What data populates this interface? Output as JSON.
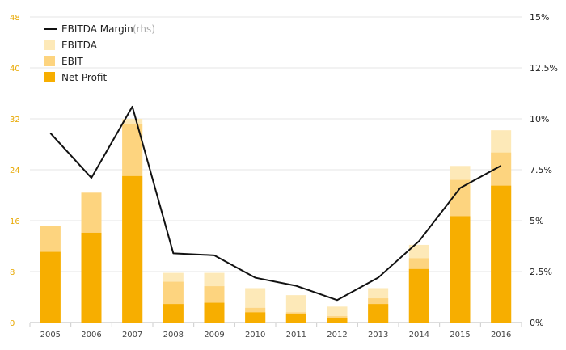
{
  "chart_data": {
    "type": "bar",
    "categories": [
      "2005",
      "2006",
      "2007",
      "2008",
      "2009",
      "2010",
      "2011",
      "2012",
      "2013",
      "2014",
      "2015",
      "2016"
    ],
    "series": [
      {
        "name": "EBITDA",
        "kind": "bar",
        "color": "#fde9b8",
        "values": [
          15.2,
          20.4,
          32.0,
          7.8,
          7.8,
          5.4,
          4.3,
          2.5,
          5.4,
          12.2,
          24.6,
          30.2
        ]
      },
      {
        "name": "EBIT",
        "kind": "bar",
        "color": "#fdd47f",
        "values": [
          15.2,
          20.4,
          31.2,
          6.4,
          5.7,
          2.3,
          1.6,
          1.0,
          3.8,
          10.1,
          22.4,
          26.7
        ]
      },
      {
        "name": "Net Profit",
        "kind": "bar",
        "color": "#f7ae00",
        "values": [
          11.1,
          14.1,
          23.0,
          2.9,
          3.1,
          1.6,
          1.3,
          0.7,
          2.9,
          8.4,
          16.7,
          21.5
        ]
      },
      {
        "name": "EBITDA Margin",
        "kind": "line",
        "axis": "right",
        "color": "#111111",
        "values": [
          9.3,
          7.1,
          10.6,
          3.4,
          3.3,
          2.2,
          1.8,
          1.1,
          2.2,
          4.0,
          6.6,
          7.7
        ]
      }
    ],
    "left_ticks": [
      "0",
      "8",
      "16",
      "24",
      "32",
      "40",
      "48"
    ],
    "right_ticks": [
      "0%",
      "2.5%",
      "5%",
      "7.5%",
      "10%",
      "12.5%",
      "15%"
    ],
    "ylim_left": [
      0,
      48
    ],
    "ylim_right": [
      0,
      15
    ],
    "legend": {
      "position": "top-left",
      "items": [
        {
          "label": "EBITDA Margin",
          "suffix": "(rhs)",
          "type": "line",
          "color": "#111111"
        },
        {
          "label": "EBITDA",
          "type": "box",
          "color": "#fde9b8"
        },
        {
          "label": "EBIT",
          "type": "box",
          "color": "#fdd47f"
        },
        {
          "label": "Net Profit",
          "type": "box",
          "color": "#f7ae00"
        }
      ]
    },
    "grid": true
  }
}
